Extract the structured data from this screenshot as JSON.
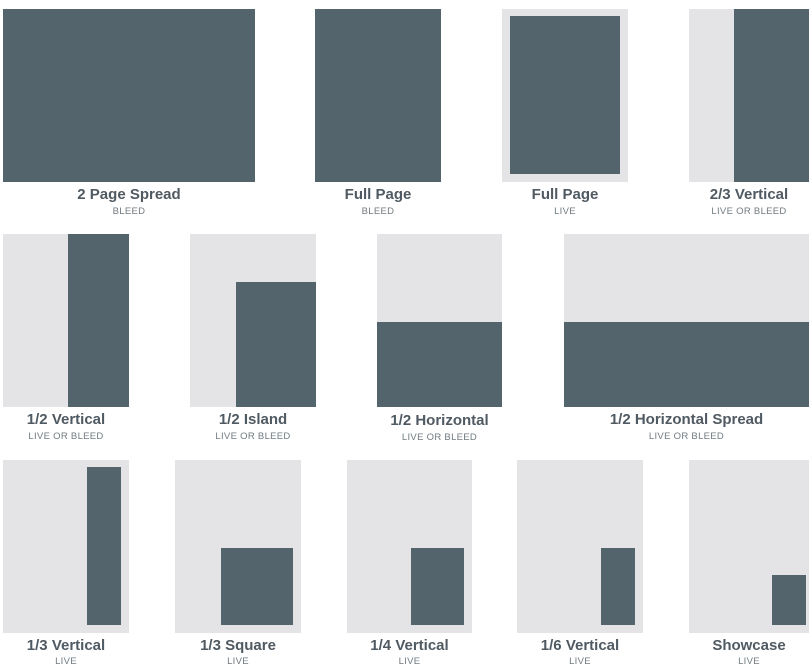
{
  "colors": {
    "page": "#e4e4e6",
    "ad": "#54646c",
    "title_text": "#505a62",
    "subtitle_text": "#707a80"
  },
  "ad_sizes": [
    {
      "title": "2 Page Spread",
      "subtitle": "BLEED"
    },
    {
      "title": "Full Page",
      "subtitle": "BLEED"
    },
    {
      "title": "Full Page",
      "subtitle": "LIVE"
    },
    {
      "title": "2/3 Vertical",
      "subtitle": "LIVE OR BLEED"
    },
    {
      "title": "1/2 Vertical",
      "subtitle": "LIVE OR BLEED"
    },
    {
      "title": "1/2 Island",
      "subtitle": "LIVE OR BLEED"
    },
    {
      "title": "1/2 Horizontal",
      "subtitle": "LIVE OR BLEED"
    },
    {
      "title": "1/2 Horizontal Spread",
      "subtitle": "LIVE OR BLEED"
    },
    {
      "title": "1/3 Vertical",
      "subtitle": "LIVE"
    },
    {
      "title": "1/3 Square",
      "subtitle": "LIVE"
    },
    {
      "title": "1/4 Vertical",
      "subtitle": "LIVE"
    },
    {
      "title": "1/6 Vertical",
      "subtitle": "LIVE"
    },
    {
      "title": "Showcase",
      "subtitle": "LIVE"
    }
  ]
}
